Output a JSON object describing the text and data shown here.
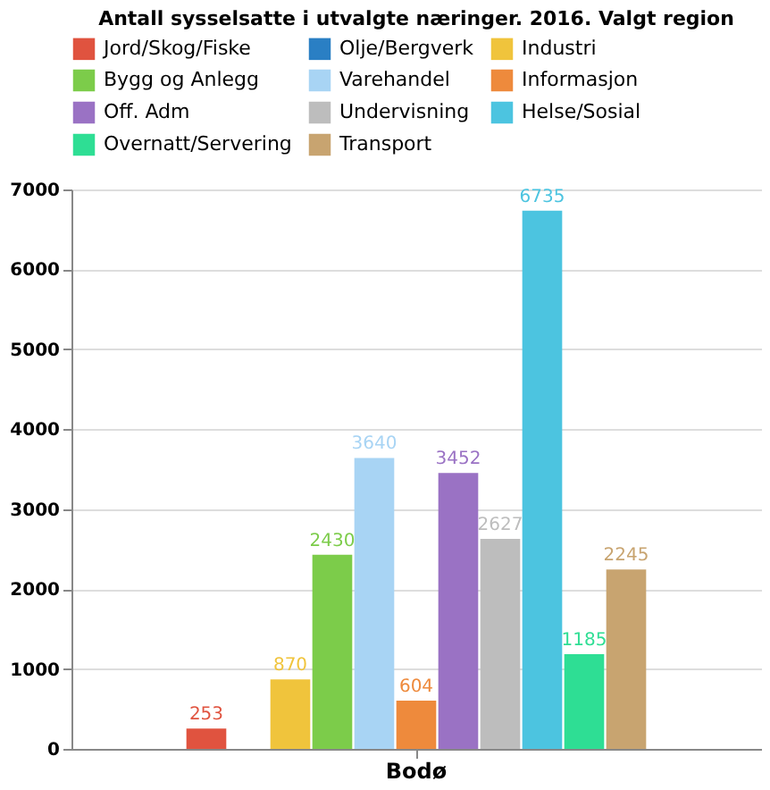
{
  "chart_data": {
    "type": "bar",
    "title": "Antall sysselsatte i utvalgte næringer. 2016. Valgt region",
    "categories": [
      "Bodø"
    ],
    "series": [
      {
        "name": "Jord/Skog/Fiske",
        "color": "#e0533f",
        "values": [
          253
        ]
      },
      {
        "name": "Olje/Bergverk",
        "color": "#2a7fc4",
        "values": [
          null
        ]
      },
      {
        "name": "Industri",
        "color": "#f0c43c",
        "values": [
          870
        ]
      },
      {
        "name": "Bygg og Anlegg",
        "color": "#7ccc4a",
        "values": [
          2430
        ]
      },
      {
        "name": "Varehandel",
        "color": "#a8d4f4",
        "values": [
          3640
        ]
      },
      {
        "name": "Informasjon",
        "color": "#ee8a3c",
        "values": [
          604
        ]
      },
      {
        "name": "Off. Adm",
        "color": "#9a72c4",
        "values": [
          3452
        ]
      },
      {
        "name": "Undervisning",
        "color": "#bdbdbd",
        "values": [
          2627
        ]
      },
      {
        "name": "Helse/Sosial",
        "color": "#4cc4e0",
        "values": [
          6735
        ]
      },
      {
        "name": "Overnatt/Servering",
        "color": "#2ede94",
        "values": [
          1185
        ]
      },
      {
        "name": "Transport",
        "color": "#c8a470",
        "values": [
          2245
        ]
      }
    ],
    "ylim": [
      0,
      7000
    ],
    "yticks": [
      0,
      1000,
      2000,
      3000,
      4000,
      5000,
      6000,
      7000
    ],
    "grid": "y",
    "legend": "top",
    "data_labels": true
  }
}
